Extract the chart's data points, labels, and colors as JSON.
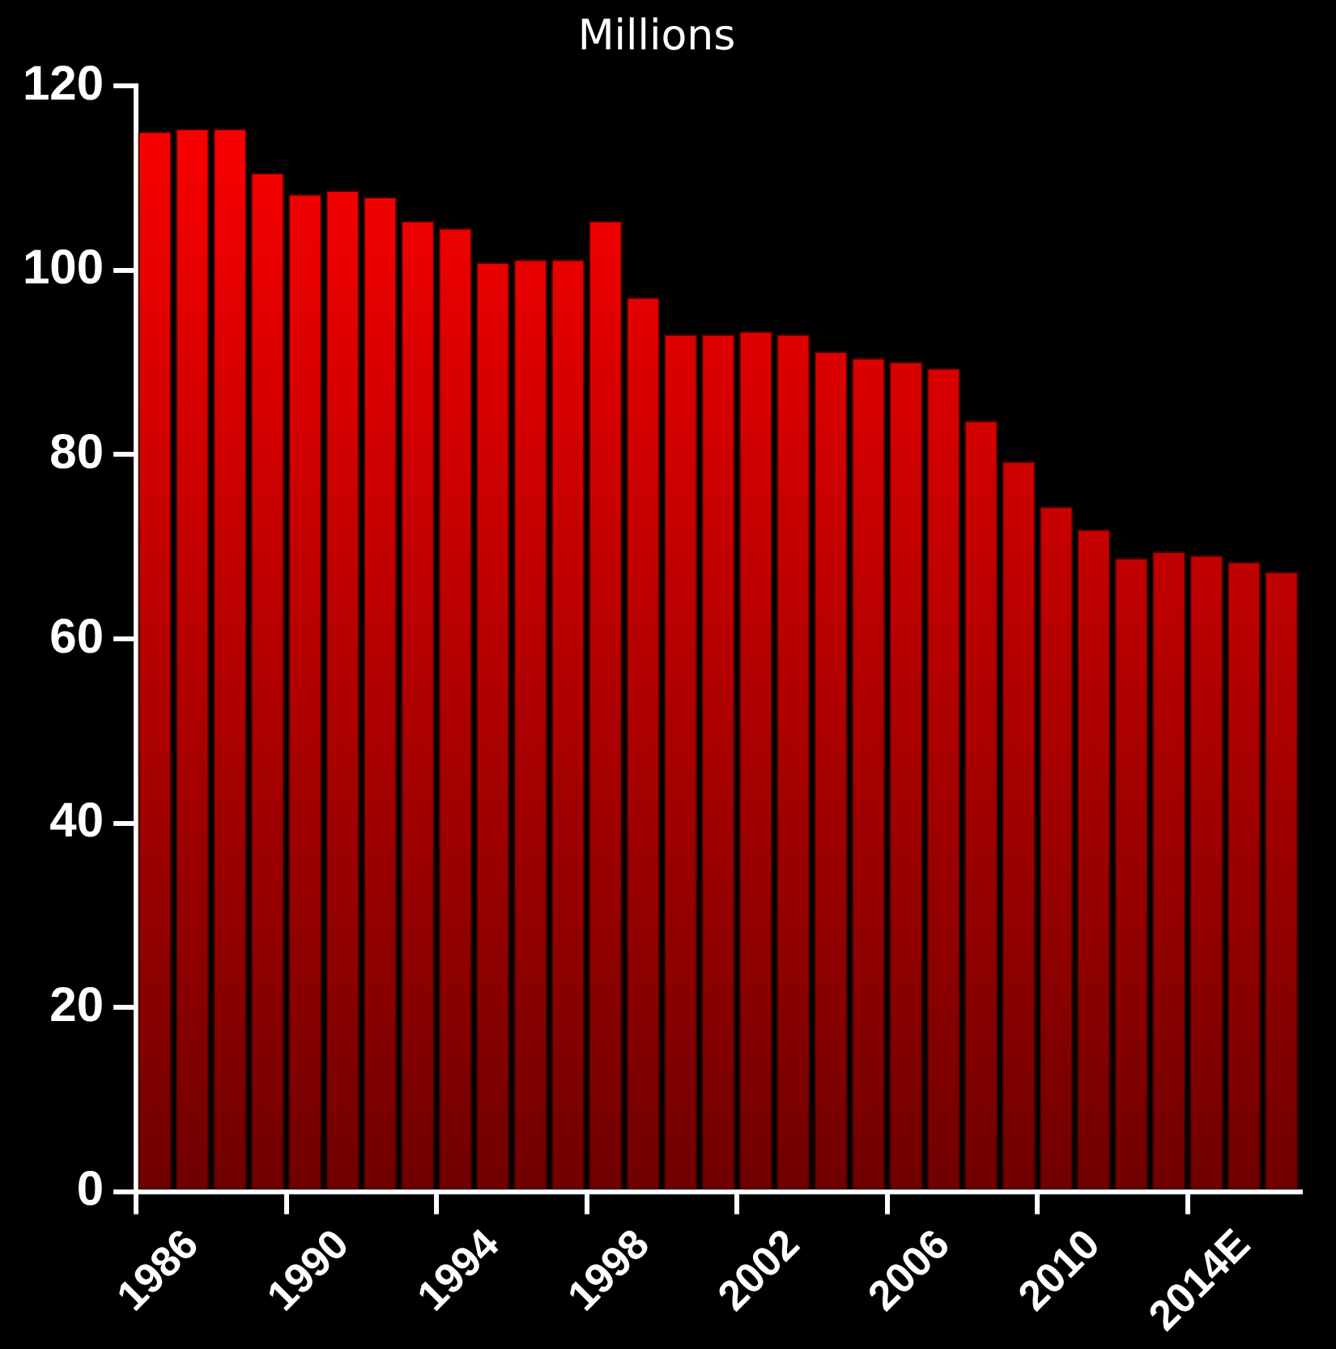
{
  "chart_data": {
    "type": "bar",
    "title": "Millions",
    "categories": [
      null,
      "1986",
      null,
      null,
      null,
      "1990",
      null,
      null,
      null,
      "1994",
      null,
      null,
      null,
      "1998",
      null,
      null,
      null,
      "2002",
      null,
      null,
      null,
      "2006",
      null,
      null,
      null,
      "2010",
      null,
      null,
      null,
      "2014E",
      null
    ],
    "values": [
      115.1,
      115.4,
      115.4,
      110.6,
      108.3,
      108.7,
      108.0,
      105.4,
      104.6,
      100.9,
      101.2,
      101.2,
      105.4,
      97.1,
      93.1,
      93.1,
      93.4,
      93.1,
      91.2,
      90.5,
      90.1,
      89.4,
      83.7,
      79.3,
      74.4,
      71.9,
      68.8,
      69.5,
      69.1,
      68.4,
      67.3
    ],
    "color": "#ff0000",
    "ylim": [
      0,
      120
    ],
    "yticks": [
      0,
      20,
      40,
      60,
      80,
      100,
      120
    ],
    "grid": false,
    "legend": false
  }
}
